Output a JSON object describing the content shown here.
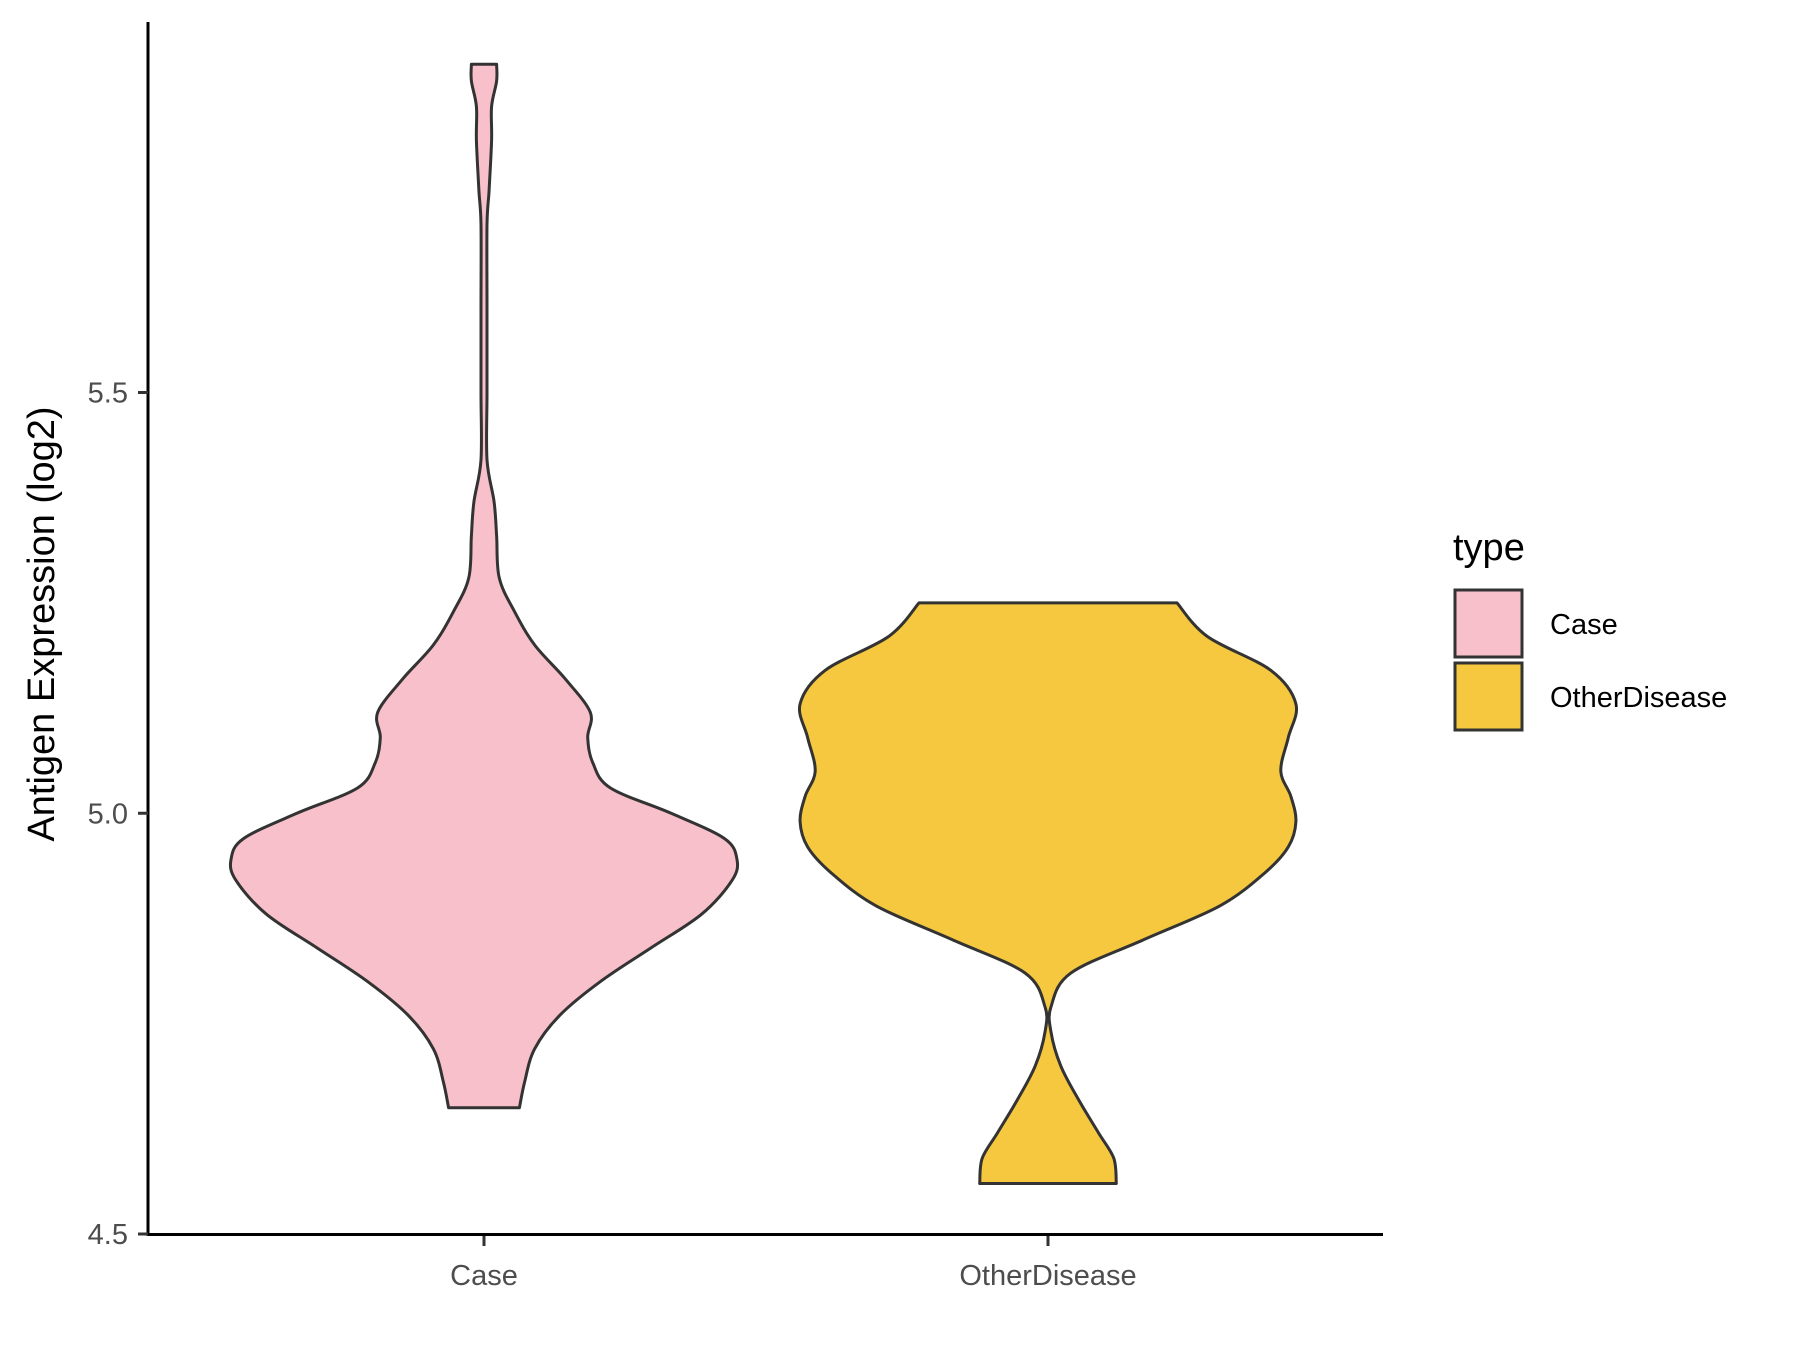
{
  "chart_data": {
    "type": "violin",
    "ylabel": "Antigen Expression (log2)",
    "xlabel": "",
    "ylim": [
      4.5,
      5.93
    ],
    "yticks": [
      4.5,
      5.0,
      5.5
    ],
    "ytick_labels": [
      "4.5",
      "5.0",
      "5.5"
    ],
    "categories": [
      "Case",
      "OtherDisease"
    ],
    "legend": {
      "title": "type",
      "position": "right"
    },
    "grid": false,
    "series": [
      {
        "name": "Case",
        "color": "#F8C0CB",
        "outline": "#333333",
        "min": 4.65,
        "max": 5.89,
        "density_profile": [
          [
            4.65,
            0.14
          ],
          [
            4.68,
            0.16
          ],
          [
            4.72,
            0.2
          ],
          [
            4.76,
            0.3
          ],
          [
            4.8,
            0.46
          ],
          [
            4.84,
            0.66
          ],
          [
            4.88,
            0.86
          ],
          [
            4.92,
            0.98
          ],
          [
            4.945,
            1.0
          ],
          [
            4.97,
            0.95
          ],
          [
            5.0,
            0.74
          ],
          [
            5.03,
            0.5
          ],
          [
            5.06,
            0.43
          ],
          [
            5.09,
            0.41
          ],
          [
            5.12,
            0.42
          ],
          [
            5.16,
            0.32
          ],
          [
            5.2,
            0.2
          ],
          [
            5.24,
            0.12
          ],
          [
            5.28,
            0.06
          ],
          [
            5.33,
            0.05
          ],
          [
            5.37,
            0.04
          ],
          [
            5.42,
            0.01
          ],
          [
            5.5,
            0.0
          ],
          [
            5.6,
            0.0
          ],
          [
            5.7,
            0.01
          ],
          [
            5.74,
            0.02
          ],
          [
            5.8,
            0.03
          ],
          [
            5.84,
            0.03
          ],
          [
            5.87,
            0.05
          ],
          [
            5.89,
            0.05
          ]
        ]
      },
      {
        "name": "OtherDisease",
        "color": "#F6C83F",
        "outline": "#333333",
        "min": 4.56,
        "max": 5.25,
        "density_profile": [
          [
            4.56,
            0.27
          ],
          [
            4.59,
            0.26
          ],
          [
            4.62,
            0.2
          ],
          [
            4.66,
            0.12
          ],
          [
            4.7,
            0.05
          ],
          [
            4.74,
            0.01
          ],
          [
            4.77,
            0.01
          ],
          [
            4.81,
            0.09
          ],
          [
            4.85,
            0.38
          ],
          [
            4.89,
            0.68
          ],
          [
            4.93,
            0.86
          ],
          [
            4.96,
            0.95
          ],
          [
            4.99,
            0.98
          ],
          [
            5.02,
            0.96
          ],
          [
            5.05,
            0.92
          ],
          [
            5.09,
            0.95
          ],
          [
            5.13,
            0.98
          ],
          [
            5.17,
            0.88
          ],
          [
            5.21,
            0.63
          ],
          [
            5.25,
            0.51
          ]
        ]
      }
    ]
  }
}
